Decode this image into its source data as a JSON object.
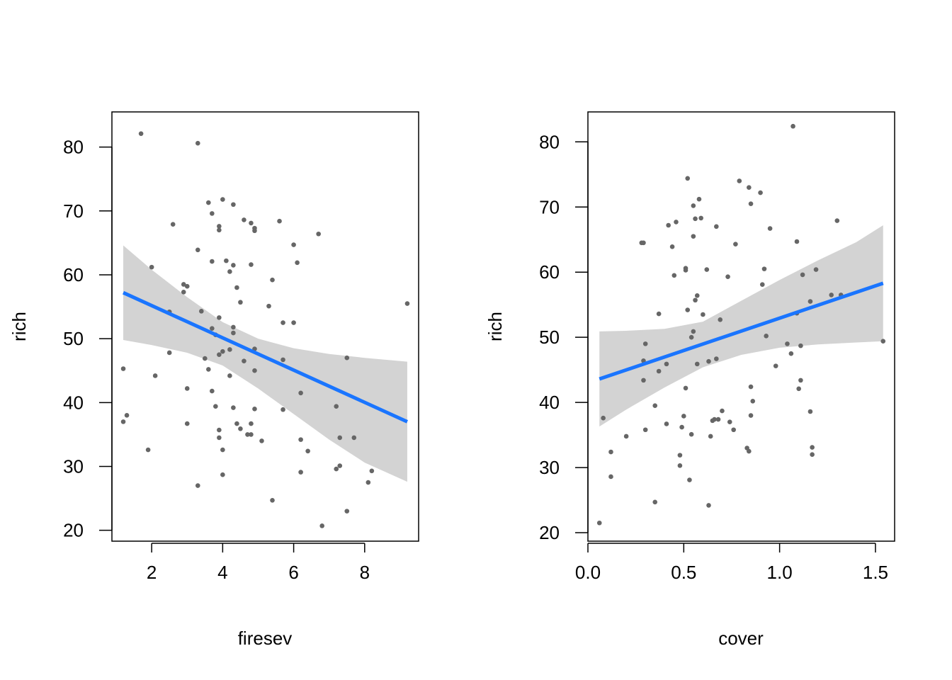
{
  "chart_data": [
    {
      "type": "scatter",
      "xlabel": "firesev",
      "ylabel": "rich",
      "xlim": [
        0.88,
        9.52
      ],
      "ylim": [
        18.3,
        85.5
      ],
      "xticks": [
        2,
        4,
        6,
        8
      ],
      "yticks": [
        20,
        30,
        40,
        50,
        60,
        70,
        80
      ],
      "grid": false,
      "colors": {
        "points": "#666666",
        "fit_line": "#1a75ff",
        "confidence_band": "#d3d3d3"
      },
      "fit": {
        "x": [
          1.2,
          9.2
        ],
        "y": [
          57.2,
          37.0
        ]
      },
      "band": {
        "x": [
          1.2,
          2.0,
          3.0,
          4.0,
          5.0,
          6.0,
          7.0,
          8.0,
          9.2
        ],
        "upper": [
          64.6,
          60.8,
          56.5,
          52.6,
          50.0,
          48.5,
          47.6,
          47.0,
          46.4
        ],
        "lower": [
          49.8,
          49.0,
          47.8,
          45.8,
          42.2,
          38.2,
          34.2,
          30.6,
          27.6
        ]
      },
      "points": [
        [
          1.2,
          45.3
        ],
        [
          1.2,
          37.0
        ],
        [
          1.3,
          38.0
        ],
        [
          1.7,
          82.1
        ],
        [
          1.9,
          32.6
        ],
        [
          2.0,
          61.2
        ],
        [
          2.1,
          44.2
        ],
        [
          2.5,
          47.8
        ],
        [
          2.5,
          54.2
        ],
        [
          2.6,
          67.9
        ],
        [
          2.9,
          58.5
        ],
        [
          2.9,
          57.3
        ],
        [
          3.0,
          58.2
        ],
        [
          3.0,
          42.2
        ],
        [
          3.0,
          36.7
        ],
        [
          3.3,
          80.6
        ],
        [
          3.3,
          63.9
        ],
        [
          3.3,
          27.0
        ],
        [
          3.4,
          54.3
        ],
        [
          3.5,
          46.9
        ],
        [
          3.6,
          45.2
        ],
        [
          3.6,
          71.3
        ],
        [
          3.7,
          69.6
        ],
        [
          3.7,
          62.1
        ],
        [
          3.7,
          41.8
        ],
        [
          3.7,
          51.6
        ],
        [
          3.8,
          50.6
        ],
        [
          3.8,
          39.4
        ],
        [
          3.9,
          67.6
        ],
        [
          3.9,
          67.0
        ],
        [
          3.9,
          53.3
        ],
        [
          3.9,
          47.5
        ],
        [
          3.9,
          35.7
        ],
        [
          3.9,
          34.5
        ],
        [
          4.0,
          71.8
        ],
        [
          4.0,
          48.0
        ],
        [
          4.0,
          32.6
        ],
        [
          4.0,
          28.7
        ],
        [
          4.1,
          62.2
        ],
        [
          4.2,
          60.5
        ],
        [
          4.2,
          44.2
        ],
        [
          4.2,
          48.3
        ],
        [
          4.3,
          71.0
        ],
        [
          4.3,
          61.5
        ],
        [
          4.3,
          51.8
        ],
        [
          4.3,
          50.9
        ],
        [
          4.3,
          39.2
        ],
        [
          4.4,
          58.0
        ],
        [
          4.4,
          36.7
        ],
        [
          4.5,
          55.7
        ],
        [
          4.5,
          35.9
        ],
        [
          4.6,
          68.6
        ],
        [
          4.6,
          46.5
        ],
        [
          4.7,
          35.0
        ],
        [
          4.8,
          68.1
        ],
        [
          4.8,
          36.7
        ],
        [
          4.8,
          35.0
        ],
        [
          4.8,
          61.6
        ],
        [
          4.9,
          67.3
        ],
        [
          4.9,
          66.9
        ],
        [
          4.9,
          48.4
        ],
        [
          4.9,
          45.0
        ],
        [
          4.9,
          39.0
        ],
        [
          5.1,
          34.0
        ],
        [
          5.3,
          55.1
        ],
        [
          5.4,
          59.2
        ],
        [
          5.4,
          24.7
        ],
        [
          5.6,
          68.4
        ],
        [
          5.7,
          52.5
        ],
        [
          5.7,
          46.7
        ],
        [
          5.7,
          38.9
        ],
        [
          6.0,
          64.7
        ],
        [
          6.0,
          52.5
        ],
        [
          6.1,
          61.9
        ],
        [
          6.2,
          41.5
        ],
        [
          6.2,
          34.2
        ],
        [
          6.2,
          29.1
        ],
        [
          6.4,
          32.4
        ],
        [
          6.7,
          66.4
        ],
        [
          6.8,
          20.7
        ],
        [
          7.2,
          39.4
        ],
        [
          7.2,
          29.6
        ],
        [
          7.3,
          30.1
        ],
        [
          7.3,
          34.5
        ],
        [
          7.5,
          47.0
        ],
        [
          7.5,
          23.0
        ],
        [
          7.7,
          34.5
        ],
        [
          8.1,
          27.5
        ],
        [
          8.2,
          29.3
        ],
        [
          9.2,
          55.5
        ]
      ]
    },
    {
      "type": "scatter",
      "xlabel": "cover",
      "ylabel": "rich",
      "xlim": [
        0.0,
        1.6
      ],
      "ylim": [
        18.7,
        84.6
      ],
      "xticks": [
        0.0,
        0.5,
        1.0,
        1.5
      ],
      "xtick_labels": [
        "0.0",
        "0.5",
        "1.0",
        "1.5"
      ],
      "yticks": [
        20,
        30,
        40,
        50,
        60,
        70,
        80
      ],
      "grid": false,
      "colors": {
        "points": "#666666",
        "fit_line": "#1a75ff",
        "confidence_band": "#d3d3d3"
      },
      "fit": {
        "x": [
          0.06,
          1.54
        ],
        "y": [
          43.6,
          58.3
        ]
      },
      "band": {
        "x": [
          0.06,
          0.2,
          0.4,
          0.6,
          0.8,
          1.0,
          1.2,
          1.4,
          1.54
        ],
        "upper": [
          50.9,
          51.0,
          51.3,
          52.4,
          55.6,
          58.8,
          61.8,
          64.6,
          67.2
        ],
        "lower": [
          36.3,
          38.9,
          42.3,
          45.4,
          47.3,
          48.4,
          48.9,
          49.2,
          49.4
        ]
      },
      "points": [
        [
          0.06,
          21.5
        ],
        [
          0.08,
          37.6
        ],
        [
          0.12,
          32.4
        ],
        [
          0.12,
          28.6
        ],
        [
          0.2,
          34.8
        ],
        [
          0.28,
          64.5
        ],
        [
          0.29,
          64.5
        ],
        [
          0.29,
          46.4
        ],
        [
          0.29,
          43.4
        ],
        [
          0.3,
          49.0
        ],
        [
          0.3,
          35.8
        ],
        [
          0.35,
          39.5
        ],
        [
          0.35,
          24.7
        ],
        [
          0.37,
          53.6
        ],
        [
          0.37,
          44.8
        ],
        [
          0.41,
          45.9
        ],
        [
          0.41,
          36.7
        ],
        [
          0.42,
          67.2
        ],
        [
          0.44,
          63.9
        ],
        [
          0.45,
          59.5
        ],
        [
          0.46,
          67.7
        ],
        [
          0.48,
          31.9
        ],
        [
          0.48,
          30.3
        ],
        [
          0.49,
          36.2
        ],
        [
          0.5,
          37.9
        ],
        [
          0.51,
          42.2
        ],
        [
          0.51,
          60.6
        ],
        [
          0.51,
          60.3
        ],
        [
          0.52,
          74.4
        ],
        [
          0.52,
          54.2
        ],
        [
          0.53,
          28.1
        ],
        [
          0.54,
          35.1
        ],
        [
          0.55,
          70.2
        ],
        [
          0.55,
          65.5
        ],
        [
          0.55,
          50.9
        ],
        [
          0.54,
          50.0
        ],
        [
          0.56,
          55.7
        ],
        [
          0.56,
          68.2
        ],
        [
          0.57,
          56.4
        ],
        [
          0.57,
          45.9
        ],
        [
          0.58,
          71.2
        ],
        [
          0.59,
          68.3
        ],
        [
          0.6,
          53.5
        ],
        [
          0.62,
          60.4
        ],
        [
          0.63,
          46.3
        ],
        [
          0.63,
          24.2
        ],
        [
          0.64,
          34.8
        ],
        [
          0.65,
          37.2
        ],
        [
          0.66,
          37.4
        ],
        [
          0.67,
          67.0
        ],
        [
          0.67,
          46.7
        ],
        [
          0.68,
          37.4
        ],
        [
          0.69,
          52.7
        ],
        [
          0.7,
          38.7
        ],
        [
          0.73,
          59.3
        ],
        [
          0.74,
          37.0
        ],
        [
          0.76,
          35.8
        ],
        [
          0.77,
          64.3
        ],
        [
          0.79,
          74.0
        ],
        [
          0.83,
          33.0
        ],
        [
          0.84,
          73.0
        ],
        [
          0.84,
          32.5
        ],
        [
          0.85,
          70.5
        ],
        [
          0.85,
          42.4
        ],
        [
          0.85,
          38.0
        ],
        [
          0.86,
          40.2
        ],
        [
          0.9,
          72.2
        ],
        [
          0.91,
          58.1
        ],
        [
          0.92,
          60.5
        ],
        [
          0.93,
          50.2
        ],
        [
          0.95,
          66.7
        ],
        [
          0.98,
          45.6
        ],
        [
          1.04,
          49.0
        ],
        [
          1.06,
          47.5
        ],
        [
          1.07,
          82.4
        ],
        [
          1.09,
          53.7
        ],
        [
          1.09,
          64.7
        ],
        [
          1.1,
          42.1
        ],
        [
          1.11,
          48.7
        ],
        [
          1.11,
          43.4
        ],
        [
          1.12,
          59.6
        ],
        [
          1.16,
          38.6
        ],
        [
          1.16,
          55.5
        ],
        [
          1.17,
          33.1
        ],
        [
          1.17,
          32.0
        ],
        [
          1.19,
          60.4
        ],
        [
          1.27,
          56.5
        ],
        [
          1.3,
          67.9
        ],
        [
          1.32,
          56.5
        ],
        [
          1.54,
          49.4
        ]
      ]
    }
  ]
}
